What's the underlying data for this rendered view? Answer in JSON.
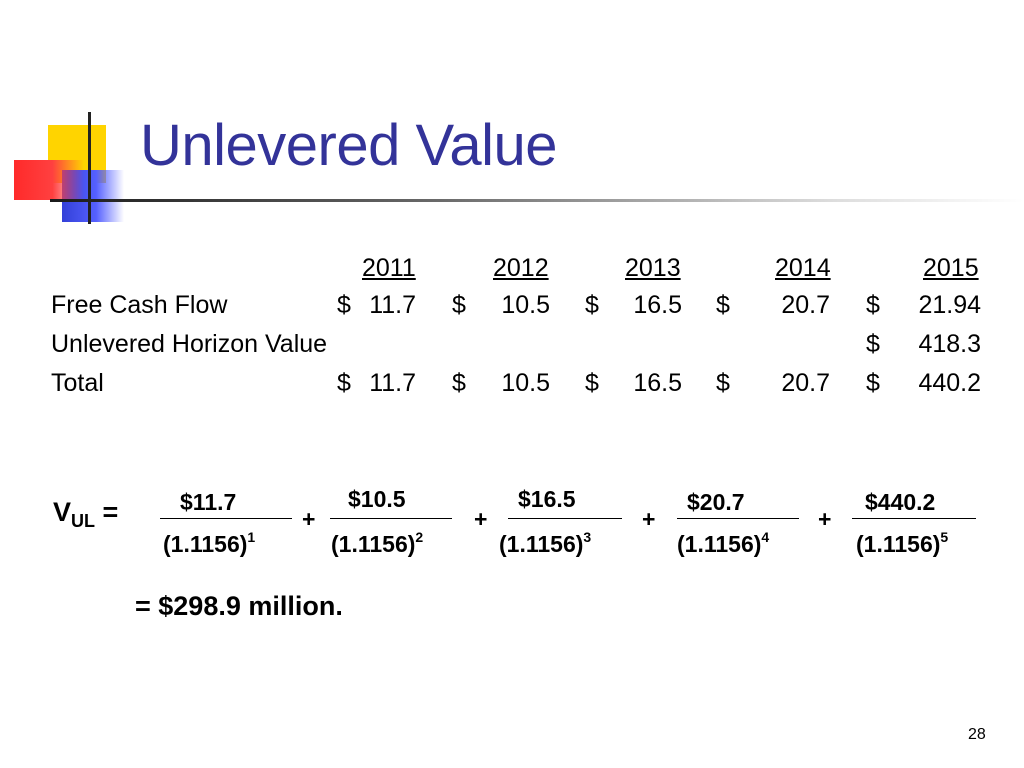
{
  "title": "Unlevered Value",
  "table": {
    "years": [
      "2011",
      "2012",
      "2013",
      "2014",
      "2015"
    ],
    "rows": [
      {
        "label": "Free Cash Flow",
        "values": [
          "11.7",
          "10.5",
          "16.5",
          "20.7",
          "21.94"
        ]
      },
      {
        "label": "Unlevered Horizon Value",
        "values": [
          "",
          "",
          "",
          "",
          "418.3"
        ]
      },
      {
        "label": "Total",
        "values": [
          "11.7",
          "10.5",
          "16.5",
          "20.7",
          "440.2"
        ]
      }
    ],
    "currency": "$"
  },
  "equation": {
    "lhs_main": "V",
    "lhs_sub": "UL",
    "equals": "=",
    "plus": "+",
    "numerators": [
      "$11.7",
      "$10.5",
      "$16.5",
      "$20.7",
      "$440.2"
    ],
    "denominator_base": "(1.1156)",
    "exponents": [
      "1",
      "2",
      "3",
      "4",
      "5"
    ],
    "result": "= $298.9 million."
  },
  "page_number": "28"
}
